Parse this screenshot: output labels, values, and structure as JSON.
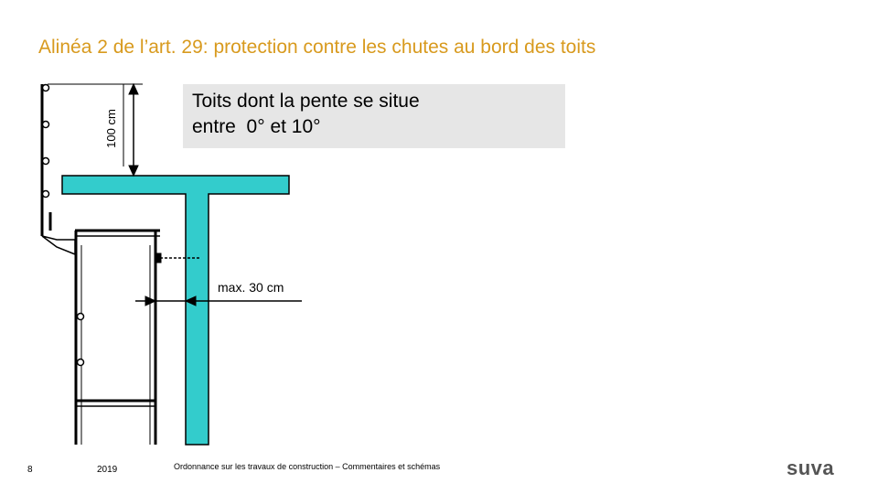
{
  "slide": {
    "title": "Alinéa 2 de l’art. 29: protection contre les chutes au bord des toits",
    "callout": {
      "line1": "Toits dont la pente se situe",
      "line2": "entre  0° et 10°"
    },
    "dimension_vertical": "100 cm",
    "dimension_horizontal": "max. 30 cm",
    "colors": {
      "title": "#d89a1e",
      "roof": "#33cccc",
      "callout_bg": "#e6e6e6",
      "line": "#000000"
    }
  },
  "footer": {
    "page_number": "8",
    "year": "2019",
    "text": "Ordonnance sur les travaux de construction – Commentaires et schémas",
    "logo": "suva"
  }
}
